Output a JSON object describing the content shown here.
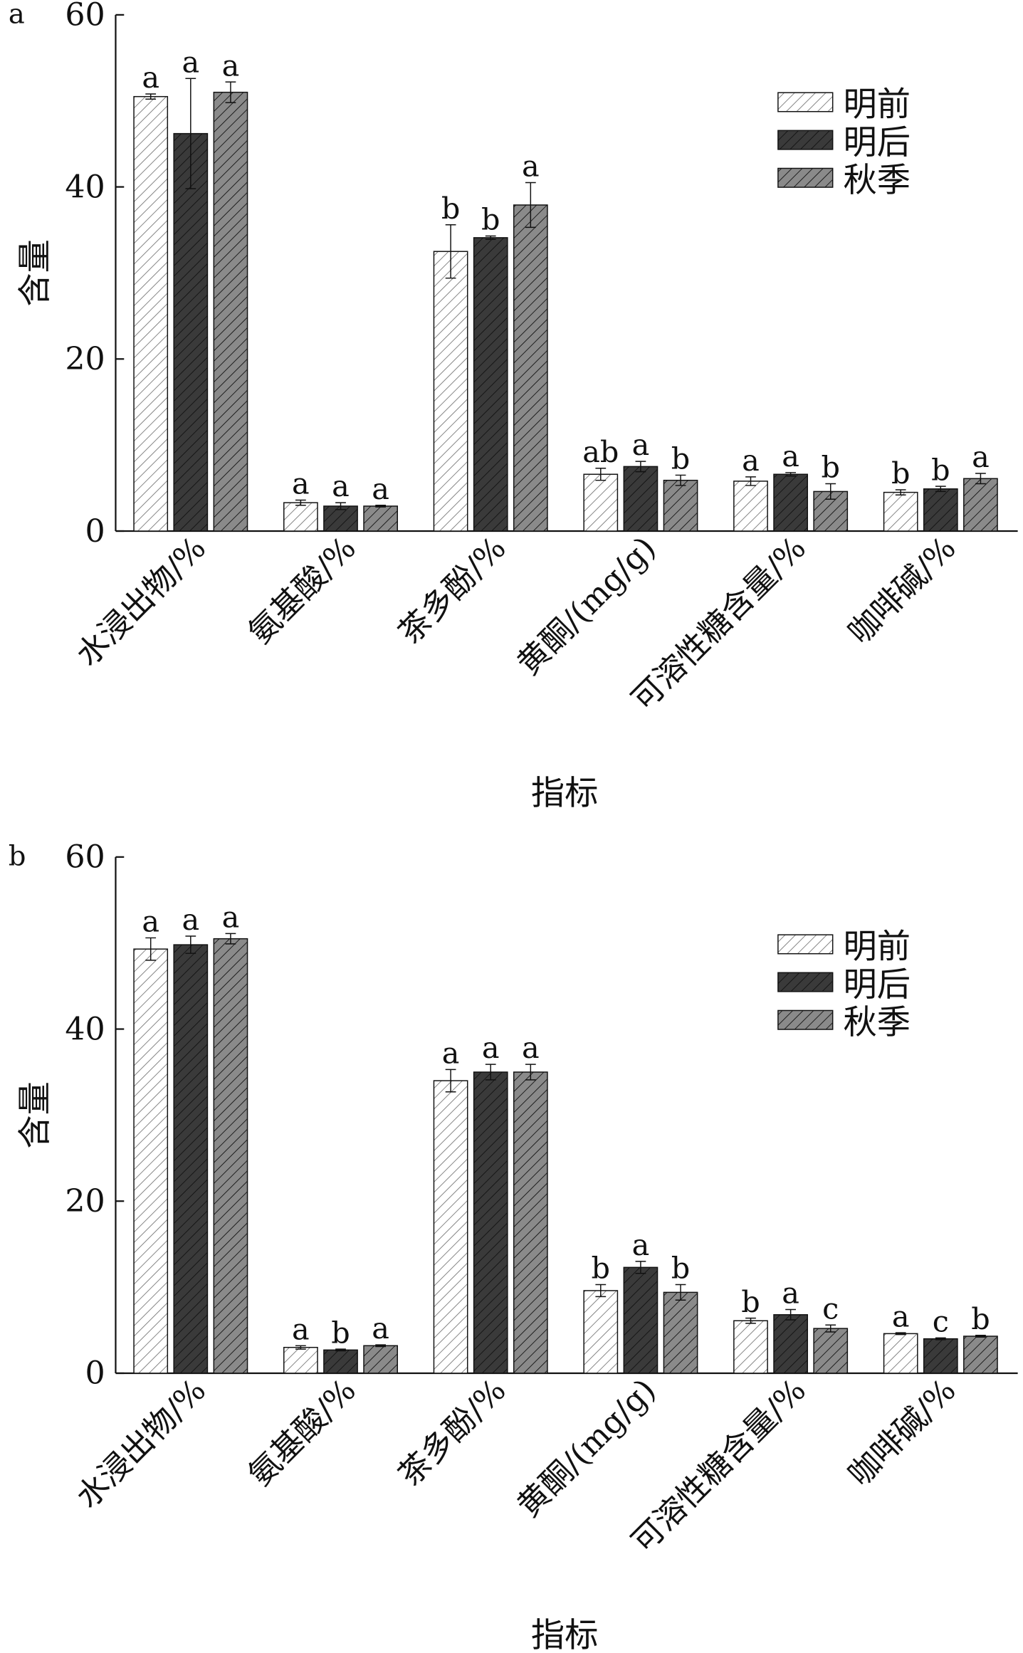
{
  "chart_data": [
    {
      "type": "bar",
      "panel_label": "a",
      "x_label": "指标",
      "y_label": "含量",
      "categories": [
        "水浸出物/%",
        "氨基酸/%",
        "茶多酚/%",
        "黄酮/(mg/g)",
        "可溶性糖含量/%",
        "咖啡碱/%"
      ],
      "series": [
        {
          "name": "明前",
          "color": "#ffffff",
          "values": [
            50.5,
            3.3,
            32.5,
            6.6,
            5.8,
            4.5
          ],
          "errors": [
            0.3,
            0.3,
            3.1,
            0.7,
            0.5,
            0.3
          ],
          "labels": [
            "a",
            "a",
            "b",
            "ab",
            "a",
            "b"
          ]
        },
        {
          "name": "明后",
          "color": "#3a3a3a",
          "values": [
            46.2,
            2.9,
            34.1,
            7.5,
            6.6,
            4.9
          ],
          "errors": [
            6.4,
            0.4,
            0.2,
            0.6,
            0.2,
            0.3
          ],
          "labels": [
            "a",
            "a",
            "b",
            "a",
            "a",
            "b"
          ]
        },
        {
          "name": "秋季",
          "color": "#8a8a8a",
          "values": [
            51.0,
            2.9,
            37.9,
            5.9,
            4.6,
            6.1
          ],
          "errors": [
            1.2,
            0.1,
            2.6,
            0.6,
            0.9,
            0.6
          ],
          "labels": [
            "a",
            "a",
            "a",
            "b",
            "b",
            "a"
          ]
        }
      ],
      "ylim": [
        0,
        60
      ],
      "yticks": [
        0,
        20,
        40,
        60
      ]
    },
    {
      "type": "bar",
      "panel_label": "b",
      "x_label": "指标",
      "y_label": "含量",
      "categories": [
        "水浸出物/%",
        "氨基酸/%",
        "茶多酚/%",
        "黄酮/(mg/g)",
        "可溶性糖含量/%",
        "咖啡碱/%"
      ],
      "series": [
        {
          "name": "明前",
          "color": "#ffffff",
          "values": [
            49.3,
            3.0,
            34.0,
            9.6,
            6.1,
            4.6
          ],
          "errors": [
            1.3,
            0.2,
            1.3,
            0.7,
            0.3,
            0.1
          ],
          "labels": [
            "a",
            "a",
            "a",
            "b",
            "b",
            "a"
          ]
        },
        {
          "name": "明后",
          "color": "#3a3a3a",
          "values": [
            49.8,
            2.7,
            35.0,
            12.3,
            6.8,
            4.0
          ],
          "errors": [
            1.0,
            0.1,
            0.9,
            0.7,
            0.6,
            0.1
          ],
          "labels": [
            "a",
            "b",
            "a",
            "a",
            "a",
            "c"
          ]
        },
        {
          "name": "秋季",
          "color": "#8a8a8a",
          "values": [
            50.5,
            3.2,
            35.0,
            9.4,
            5.2,
            4.3
          ],
          "errors": [
            0.6,
            0.1,
            0.9,
            0.9,
            0.4,
            0.1
          ],
          "labels": [
            "a",
            "a",
            "a",
            "b",
            "c",
            "b"
          ]
        }
      ],
      "ylim": [
        0,
        60
      ],
      "yticks": [
        0,
        20,
        40,
        60
      ]
    }
  ]
}
